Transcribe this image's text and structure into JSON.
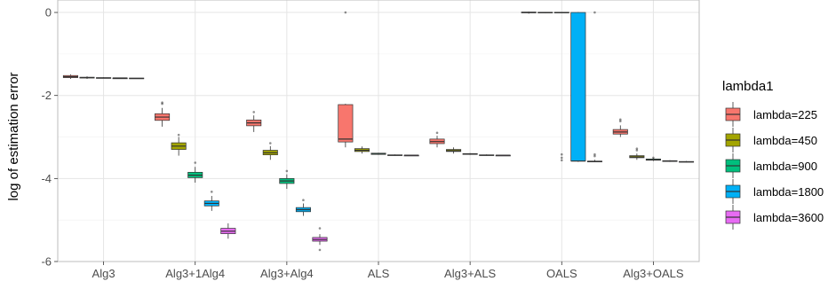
{
  "chart_data": {
    "type": "box",
    "title": "",
    "xlabel": "",
    "ylabel": "log of estimation error",
    "ylim": [
      -6,
      0.3
    ],
    "yticks": [
      0,
      -2,
      -4,
      -6
    ],
    "yticklabels": [
      "0",
      "-2",
      "-4",
      "-6"
    ],
    "grid": true,
    "legend_position": "right",
    "legend_title": "lambda1",
    "categories": [
      "Alg3",
      "Alg3+1Alg4",
      "Alg3+Alg4",
      "ALS",
      "Alg3+ALS",
      "OALS",
      "Alg3+OALS"
    ],
    "series": [
      {
        "name": "lambda=225",
        "color": "#F8766D",
        "boxes": [
          {
            "lower": -1.6,
            "q1": -1.57,
            "median": -1.55,
            "q3": -1.52,
            "upper": -1.49,
            "outliers": []
          },
          {
            "lower": -2.75,
            "q1": -2.6,
            "median": -2.52,
            "q3": -2.44,
            "upper": -2.3,
            "outliers": [
              -2.2,
              -2.17
            ]
          },
          {
            "lower": -2.88,
            "q1": -2.73,
            "median": -2.66,
            "q3": -2.59,
            "upper": -2.48,
            "outliers": [
              -2.4
            ]
          },
          {
            "lower": -3.25,
            "q1": -3.12,
            "median": -3.05,
            "q3": -2.22,
            "upper": -2.2,
            "outliers": [
              0.0
            ]
          },
          {
            "lower": -3.25,
            "q1": -3.16,
            "median": -3.11,
            "q3": -3.05,
            "upper": -2.97,
            "outliers": [
              -2.9
            ]
          },
          {
            "lower": -0.03,
            "q1": -0.01,
            "median": 0.0,
            "q3": 0.01,
            "upper": 0.02,
            "outliers": []
          },
          {
            "lower": -3.0,
            "q1": -2.93,
            "median": -2.88,
            "q3": -2.82,
            "upper": -2.72,
            "outliers": [
              -2.62,
              -2.58
            ]
          }
        ]
      },
      {
        "name": "lambda=450",
        "color": "#A3A500",
        "boxes": [
          {
            "lower": -1.6,
            "q1": -1.58,
            "median": -1.57,
            "q3": -1.56,
            "upper": -1.54,
            "outliers": []
          },
          {
            "lower": -3.45,
            "q1": -3.3,
            "median": -3.22,
            "q3": -3.14,
            "upper": -3.0,
            "outliers": [
              -2.95
            ]
          },
          {
            "lower": -3.55,
            "q1": -3.43,
            "median": -3.38,
            "q3": -3.32,
            "upper": -3.22,
            "outliers": [
              -3.15
            ]
          },
          {
            "lower": -3.4,
            "q1": -3.35,
            "median": -3.32,
            "q3": -3.28,
            "upper": -3.23,
            "outliers": []
          },
          {
            "lower": -3.4,
            "q1": -3.35,
            "median": -3.33,
            "q3": -3.3,
            "upper": -3.25,
            "outliers": []
          },
          {
            "lower": -0.02,
            "q1": -0.01,
            "median": 0.0,
            "q3": 0.005,
            "upper": 0.01,
            "outliers": []
          },
          {
            "lower": -3.55,
            "q1": -3.5,
            "median": -3.48,
            "q3": -3.45,
            "upper": -3.4,
            "outliers": [
              -3.32,
              -3.28
            ]
          }
        ]
      },
      {
        "name": "lambda=900",
        "color": "#00BF7D",
        "boxes": [
          {
            "lower": -1.59,
            "q1": -1.58,
            "median": -1.58,
            "q3": -1.57,
            "upper": -1.56,
            "outliers": []
          },
          {
            "lower": -4.1,
            "q1": -3.98,
            "median": -3.92,
            "q3": -3.85,
            "upper": -3.72,
            "outliers": [
              -3.62
            ]
          },
          {
            "lower": -4.25,
            "q1": -4.12,
            "median": -4.06,
            "q3": -4.0,
            "upper": -3.9,
            "outliers": [
              -3.82
            ]
          },
          {
            "lower": -3.43,
            "q1": -3.42,
            "median": -3.41,
            "q3": -3.39,
            "upper": -3.38,
            "outliers": []
          },
          {
            "lower": -3.43,
            "q1": -3.42,
            "median": -3.41,
            "q3": -3.4,
            "upper": -3.39,
            "outliers": []
          },
          {
            "lower": -0.01,
            "q1": -0.005,
            "median": 0.0,
            "q3": 0.005,
            "upper": 0.01,
            "outliers": [
              -3.42,
              -3.5,
              -3.56
            ]
          },
          {
            "lower": -3.58,
            "q1": -3.56,
            "median": -3.55,
            "q3": -3.53,
            "upper": -3.51,
            "outliers": [
              -3.5
            ]
          }
        ]
      },
      {
        "name": "lambda=1800",
        "color": "#00B0F6",
        "boxes": [
          {
            "lower": -1.59,
            "q1": -1.59,
            "median": -1.58,
            "q3": -1.58,
            "upper": -1.57,
            "outliers": []
          },
          {
            "lower": -4.78,
            "q1": -4.66,
            "median": -4.6,
            "q3": -4.54,
            "upper": -4.42,
            "outliers": [
              -4.32
            ]
          },
          {
            "lower": -4.9,
            "q1": -4.8,
            "median": -4.75,
            "q3": -4.7,
            "upper": -4.6,
            "outliers": [
              -4.52
            ]
          },
          {
            "lower": -3.45,
            "q1": -3.44,
            "median": -3.44,
            "q3": -3.43,
            "upper": -3.42,
            "outliers": []
          },
          {
            "lower": -3.45,
            "q1": -3.44,
            "median": -3.44,
            "q3": -3.43,
            "upper": -3.42,
            "outliers": []
          },
          {
            "lower": -3.6,
            "q1": -3.58,
            "median": -3.58,
            "q3": 0.0,
            "upper": 0.01,
            "outliers": []
          },
          {
            "lower": -3.6,
            "q1": -3.59,
            "median": -3.58,
            "q3": -3.57,
            "upper": -3.56,
            "outliers": []
          }
        ]
      },
      {
        "name": "lambda=3600",
        "color": "#E76BF3",
        "boxes": [
          {
            "lower": -1.59,
            "q1": -1.59,
            "median": -1.59,
            "q3": -1.58,
            "upper": -1.58,
            "outliers": []
          },
          {
            "lower": -5.45,
            "q1": -5.33,
            "median": -5.27,
            "q3": -5.2,
            "upper": -5.08,
            "outliers": []
          },
          {
            "lower": -5.6,
            "q1": -5.51,
            "median": -5.47,
            "q3": -5.42,
            "upper": -5.34,
            "outliers": [
              -5.72,
              -5.2
            ]
          },
          {
            "lower": -3.45,
            "q1": -3.45,
            "median": -3.44,
            "q3": -3.44,
            "upper": -3.43,
            "outliers": []
          },
          {
            "lower": -3.45,
            "q1": -3.45,
            "median": -3.44,
            "q3": -3.44,
            "upper": -3.43,
            "outliers": []
          },
          {
            "lower": -3.6,
            "q1": -3.6,
            "median": -3.59,
            "q3": -3.58,
            "upper": -3.55,
            "outliers": [
              -3.46,
              -3.42,
              0.0
            ]
          },
          {
            "lower": -3.61,
            "q1": -3.6,
            "median": -3.6,
            "q3": -3.59,
            "upper": -3.58,
            "outliers": []
          }
        ]
      }
    ]
  }
}
